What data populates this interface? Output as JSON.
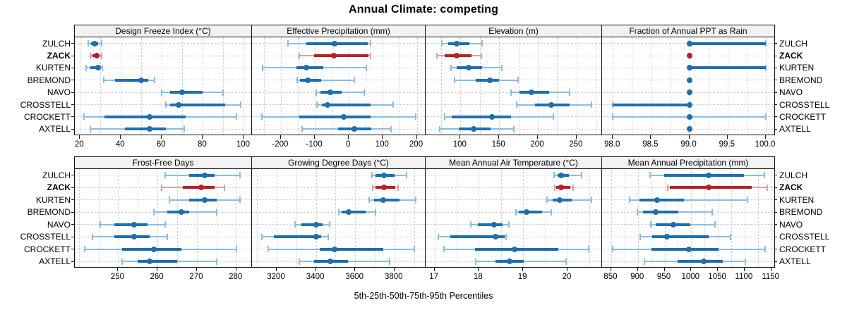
{
  "title": "Annual Climate: competing",
  "caption": "5th-25th-50th-75th-95th Percentiles",
  "sites": [
    "ZULCH",
    "ZACK",
    "KURTEN",
    "BREMOND",
    "NAVO",
    "CROSSTELL",
    "CROCKETT",
    "AXTELL"
  ],
  "highlight_site": "ZACK",
  "colors": {
    "series_blue": "#1d6fae",
    "series_blue_light": "#8cbddf",
    "highlight_red": "#b2222a",
    "highlight_red_light": "#dc9fa1",
    "gridline": "#c9c9c9",
    "strip_bg": "#f2f2f2",
    "panel_border": "#111111"
  },
  "chart_data": {
    "type": "scatter",
    "subtype": "percentile-interval-dotplot",
    "percentiles": [
      "5th",
      "25th",
      "50th",
      "75th",
      "95th"
    ],
    "legend_position": "none",
    "grid": "dotted",
    "panels": [
      {
        "panel": "Design Freeze Index (°C)",
        "row": 1,
        "col": 1,
        "xlim": [
          17.5,
          104
        ],
        "ticks": [
          20,
          40,
          60,
          80,
          100
        ],
        "tick_labels": [
          "20",
          "40",
          "60",
          "80",
          "100"
        ],
        "minor_step": 10,
        "values": {
          "ZULCH": [
            24,
            25.5,
            27,
            29,
            30.5
          ],
          "ZACK": [
            25,
            26,
            28,
            29.5,
            30.5
          ],
          "KURTEN": [
            23,
            25,
            29,
            30,
            31
          ],
          "BREMOND": [
            31.5,
            37,
            50,
            53.5,
            56.5
          ],
          "NAVO": [
            60,
            64,
            70,
            80,
            90
          ],
          "CROSSTELL": [
            62,
            64,
            68,
            91,
            98.5
          ],
          "CROCKETT": [
            22,
            32,
            54,
            71.5,
            96.5
          ],
          "AXTELL": [
            25,
            42,
            54,
            62,
            71
          ]
        }
      },
      {
        "panel": "Effective Precipitation (mm)",
        "row": 1,
        "col": 2,
        "xlim": [
          -285,
          226
        ],
        "ticks": [
          -200,
          -100,
          0,
          100,
          200
        ],
        "tick_labels": [
          "-200",
          "-100",
          "0",
          "100",
          "200"
        ],
        "minor_step": 50,
        "values": {
          "ZULCH": [
            -180,
            -125,
            -42,
            55,
            63
          ],
          "ZACK": [
            -145,
            -103,
            -45,
            57,
            63
          ],
          "KURTEN": [
            -254,
            -155,
            -125,
            -76,
            52
          ],
          "BREMOND": [
            -152,
            -143,
            -120,
            -82,
            17
          ],
          "NAVO": [
            -97,
            -83,
            -54,
            -21,
            45
          ],
          "CROSSTELL": [
            -93,
            -80,
            -62,
            65,
            131
          ],
          "CROCKETT": [
            -255,
            -146,
            -15,
            64,
            197
          ],
          "AXTELL": [
            -138,
            -31,
            17,
            66,
            125
          ]
        }
      },
      {
        "panel": "Elevation (m)",
        "row": 1,
        "col": 3,
        "xlim": [
          55,
          283
        ],
        "ticks": [
          100,
          150,
          200,
          250
        ],
        "tick_labels": [
          "100",
          "150",
          "200",
          "250"
        ],
        "minor_step": 25,
        "values": {
          "ZULCH": [
            76,
            84,
            95,
            112,
            128
          ],
          "ZACK": [
            70,
            80,
            95,
            114,
            127
          ],
          "KURTEN": [
            88,
            95,
            111,
            128,
            153
          ],
          "BREMOND": [
            92,
            120,
            138,
            150,
            174
          ],
          "NAVO": [
            165,
            176,
            192,
            215,
            241
          ],
          "CROSSTELL": [
            173,
            196,
            217,
            241,
            269
          ],
          "CROCKETT": [
            80,
            89,
            141,
            165,
            220
          ],
          "AXTELL": [
            73,
            98,
            117,
            139,
            169
          ]
        }
      },
      {
        "panel": "Fraction of Annual PPT as Rain",
        "row": 1,
        "col": 4,
        "xlim": [
          97.86,
          100.12
        ],
        "ticks": [
          98.0,
          98.5,
          99.0,
          99.5,
          100.0
        ],
        "tick_labels": [
          "98.0",
          "98.5",
          "99.0",
          "99.5",
          "100.0"
        ],
        "minor_step": 0.25,
        "values": {
          "ZULCH": [
            99,
            99,
            99,
            100,
            100
          ],
          "ZACK": [
            99,
            99,
            99,
            99,
            99
          ],
          "KURTEN": [
            99,
            99,
            99,
            100,
            100
          ],
          "BREMOND": [
            99,
            99,
            99,
            99,
            99
          ],
          "NAVO": [
            99,
            99,
            99,
            99,
            99
          ],
          "CROSSTELL": [
            98,
            98,
            99,
            99,
            99
          ],
          "CROCKETT": [
            98,
            99,
            99,
            99,
            100
          ],
          "AXTELL": [
            99,
            99,
            99,
            99,
            99
          ]
        }
      },
      {
        "panel": "Frost-Free Days",
        "row": 2,
        "col": 1,
        "xlim": [
          239,
          284
        ],
        "ticks": [
          250,
          260,
          270,
          280
        ],
        "tick_labels": [
          "250",
          "260",
          "270",
          "280"
        ],
        "minor_step": 5,
        "values": {
          "ZULCH": [
            262,
            268,
            272,
            274.5,
            281
          ],
          "ZACK": [
            261,
            266.5,
            271,
            274.5,
            277
          ],
          "KURTEN": [
            263,
            268,
            272,
            275,
            281
          ],
          "BREMOND": [
            259,
            262.5,
            266,
            268,
            275
          ],
          "NAVO": [
            245.5,
            249,
            254,
            257.5,
            262
          ],
          "CROSSTELL": [
            243.5,
            249,
            254,
            258,
            262.5
          ],
          "CROCKETT": [
            241.5,
            251,
            259,
            266,
            280
          ],
          "AXTELL": [
            251,
            255,
            258,
            265,
            275
          ]
        }
      },
      {
        "panel": "Growing Degree Days (°C)",
        "row": 2,
        "col": 2,
        "xlim": [
          3074,
          3959
        ],
        "ticks": [
          3200,
          3400,
          3600,
          3800
        ],
        "tick_labels": [
          "3200",
          "3400",
          "3600",
          "3800"
        ],
        "minor_step": 100,
        "values": {
          "ZULCH": [
            3685,
            3703,
            3745,
            3800,
            3860
          ],
          "ZACK": [
            3690,
            3703,
            3748,
            3805,
            3818
          ],
          "KURTEN": [
            3672,
            3695,
            3743,
            3825,
            3908
          ],
          "BREMOND": [
            3517,
            3532,
            3565,
            3655,
            3702
          ],
          "NAVO": [
            3292,
            3326,
            3400,
            3434,
            3468
          ],
          "CROSSTELL": [
            3125,
            3185,
            3400,
            3428,
            3463
          ],
          "CROCKETT": [
            3155,
            3420,
            3495,
            3745,
            3900
          ],
          "AXTELL": [
            3314,
            3392,
            3472,
            3562,
            3774
          ]
        }
      },
      {
        "panel": "Mean Annual Air Temperature (°C)",
        "row": 2,
        "col": 3,
        "xlim": [
          16.8,
          20.78
        ],
        "ticks": [
          17,
          18,
          19,
          20
        ],
        "tick_labels": [
          "17",
          "18",
          "19",
          "20"
        ],
        "minor_step": 0.5,
        "values": {
          "ZULCH": [
            19.7,
            19.78,
            19.85,
            20.03,
            20.32
          ],
          "ZACK": [
            19.71,
            19.75,
            19.85,
            20.06,
            20.13
          ],
          "KURTEN": [
            19.53,
            19.67,
            19.82,
            20.1,
            20.54
          ],
          "BREMOND": [
            18.84,
            18.9,
            19.07,
            19.43,
            19.63
          ],
          "NAVO": [
            17.82,
            17.98,
            18.34,
            18.53,
            18.68
          ],
          "CROSSTELL": [
            17.08,
            17.35,
            18.37,
            18.58,
            18.62
          ],
          "CROCKETT": [
            17.21,
            17.91,
            18.81,
            19.8,
            20.47
          ],
          "AXTELL": [
            17.93,
            18.37,
            18.7,
            19.01,
            19.96
          ]
        }
      },
      {
        "panel": "Mean Annual Precipitation (mm)",
        "row": 2,
        "col": 4,
        "xlim": [
          833,
          1157
        ],
        "ticks": [
          850,
          900,
          950,
          1000,
          1050,
          1100,
          1150
        ],
        "tick_labels": [
          "850",
          "900",
          "950",
          "1000",
          "1050",
          "1100",
          "1150"
        ],
        "minor_step": 25,
        "values": {
          "ZULCH": [
            923,
            949,
            1033,
            1099,
            1137
          ],
          "ZACK": [
            956,
            960,
            1032,
            1113,
            1142
          ],
          "KURTEN": [
            885,
            903,
            936,
            987,
            1106
          ],
          "BREMOND": [
            899,
            910,
            933,
            976,
            1039
          ],
          "NAVO": [
            924,
            933,
            966,
            998,
            1044
          ],
          "CROSSTELL": [
            904,
            927,
            954,
            1033,
            1074
          ],
          "CROCKETT": [
            853,
            925,
            996,
            1051,
            1138
          ],
          "AXTELL": [
            912,
            975,
            1023,
            1059,
            1101
          ]
        }
      }
    ]
  }
}
